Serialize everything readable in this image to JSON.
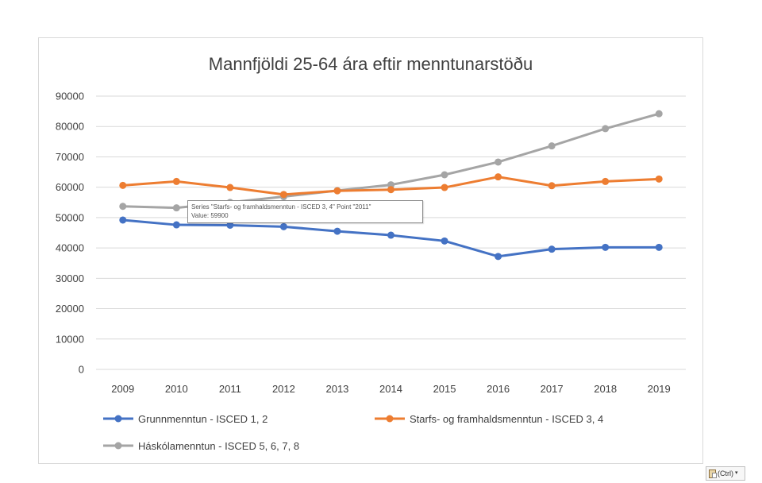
{
  "chart_data": {
    "type": "line",
    "title": "Mannfjöldi 25-64 ára eftir menntunarstöðu",
    "xlabel": "",
    "ylabel": "",
    "categories": [
      "2009",
      "2010",
      "2011",
      "2012",
      "2013",
      "2014",
      "2015",
      "2016",
      "2017",
      "2018",
      "2019"
    ],
    "ylim": [
      0,
      90000
    ],
    "yticks": [
      "0",
      "10000",
      "20000",
      "30000",
      "40000",
      "50000",
      "60000",
      "70000",
      "80000",
      "90000"
    ],
    "grid": true,
    "legend_position": "bottom",
    "series": [
      {
        "name": "Grunnmenntun - ISCED 1, 2",
        "color": "#4472c4",
        "values": [
          49200,
          47600,
          47500,
          47000,
          45500,
          44200,
          42300,
          37200,
          39600,
          40200,
          40200
        ]
      },
      {
        "name": "Starfs- og framhaldsmenntun - ISCED 3, 4",
        "color": "#ed7d31",
        "values": [
          60600,
          61900,
          59900,
          57600,
          58800,
          59200,
          59900,
          63400,
          60500,
          61900,
          62700
        ]
      },
      {
        "name": "Háskólamenntun - ISCED 5, 6, 7, 8",
        "color": "#a5a5a5",
        "values": [
          53700,
          53200,
          55000,
          56900,
          58900,
          60800,
          64100,
          68300,
          73600,
          79300,
          84200
        ]
      }
    ]
  },
  "tooltip": {
    "line1": "Series \"Starfs- og framhaldsmenntun - ISCED 3, 4\" Point \"2011\"",
    "line2": "Value: 59900"
  },
  "paste_options": {
    "label": "(Ctrl)"
  }
}
